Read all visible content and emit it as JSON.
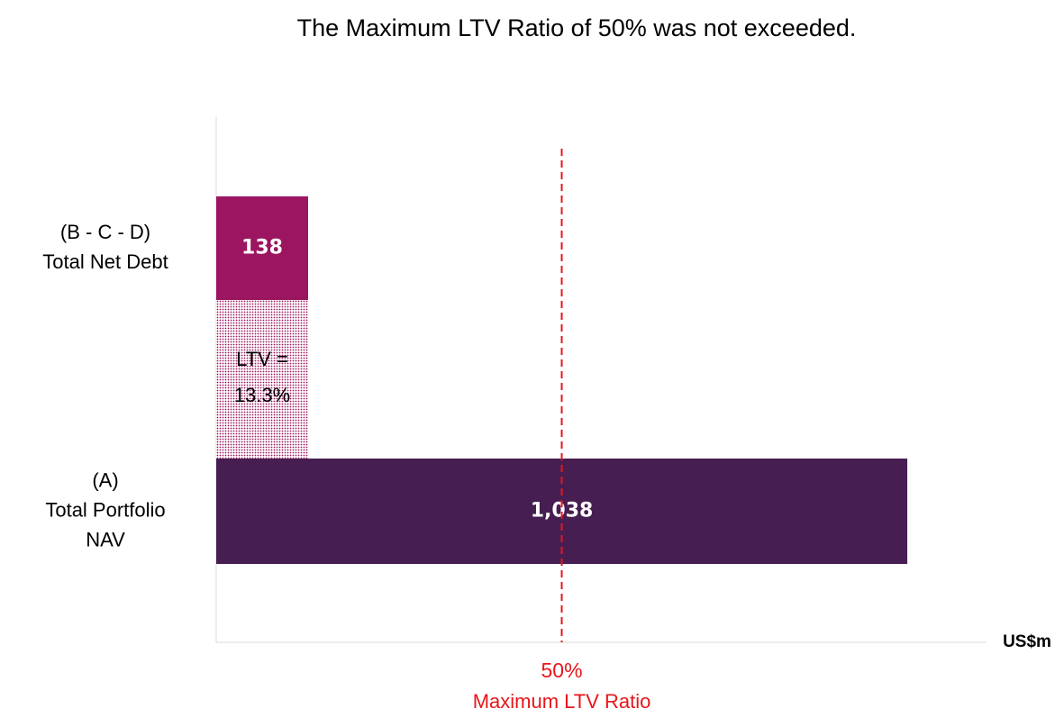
{
  "chart_data": {
    "type": "barh",
    "title": "The Maximum LTV Ratio of 50% was not exceeded.",
    "categories": [
      [
        "(B - C - D)",
        "Total Net Debt"
      ],
      [
        "(A)",
        "Total Portfolio",
        "NAV"
      ]
    ],
    "values": [
      138,
      1038
    ],
    "value_labels": [
      "138",
      "1,038"
    ],
    "colors": [
      "#9b1560",
      "#461e52"
    ],
    "xlim": [
      0,
      1157
    ],
    "x_label": "US$m",
    "annotation": [
      "LTV =",
      "13.3%"
    ],
    "reference_line": {
      "value": 50,
      "label": "50%",
      "text": "Maximum LTV Ratio",
      "color": "#e8161b"
    }
  }
}
